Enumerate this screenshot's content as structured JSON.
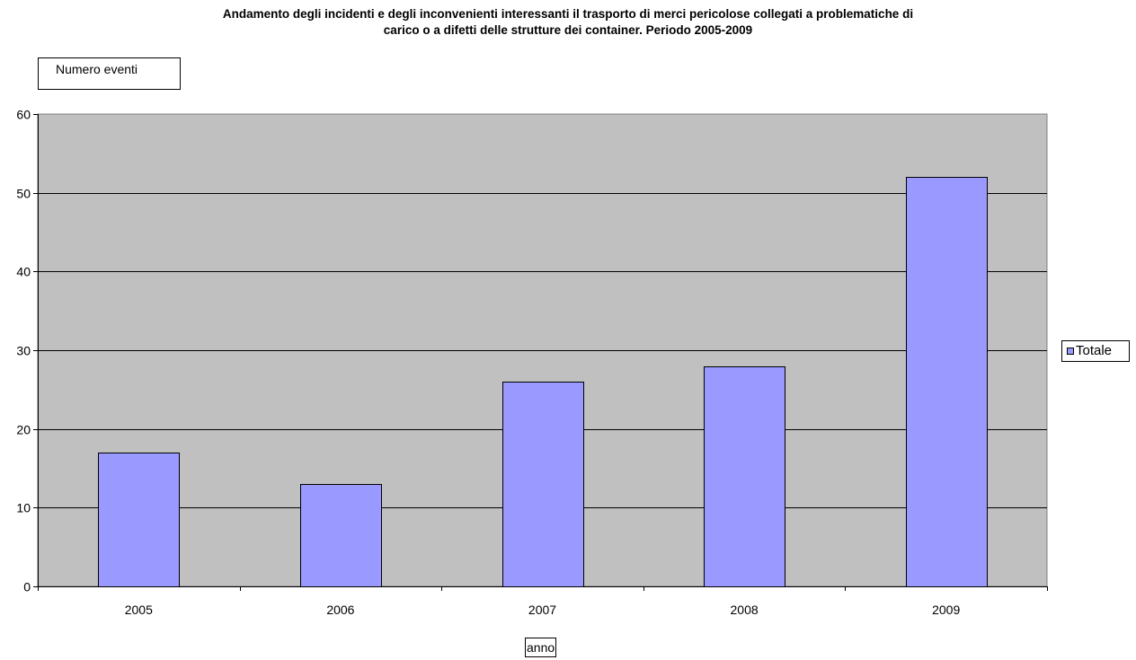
{
  "chart_data": {
    "type": "bar",
    "title_lines": [
      "Andamento degli incidenti e degli inconvenienti interessanti il trasporto di merci pericolose collegati a problematiche di",
      "carico o a difetti delle strutture dei container. Periodo 2005-2009"
    ],
    "ylabel": "Numero eventi",
    "xlabel": "anno",
    "categories": [
      "2005",
      "2006",
      "2007",
      "2008",
      "2009"
    ],
    "series": [
      {
        "name": "Totale",
        "values": [
          17,
          13,
          26,
          28,
          52
        ]
      }
    ],
    "ylim": [
      0,
      60
    ],
    "yticks": [
      0,
      10,
      20,
      30,
      40,
      50,
      60
    ],
    "grid": true,
    "legend_position": "right",
    "colors": {
      "bar": "#9999ff",
      "plot_background": "#c0c0c0",
      "gridline": "#000000"
    }
  }
}
